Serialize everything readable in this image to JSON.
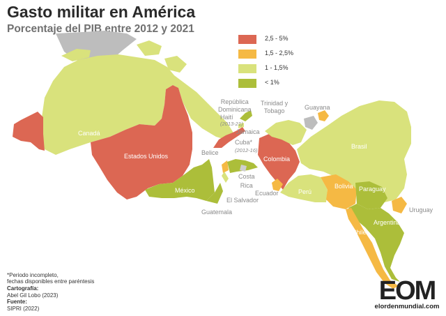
{
  "title": "Gasto militar en América",
  "subtitle": "Porcentaje del PIB entre 2012 y 2021",
  "colors": {
    "gt_2_5": "#dc6753",
    "c_1_5_2_5": "#f5b944",
    "c_1_1_5": "#d9e27c",
    "lt_1": "#acbe3a",
    "no_data": "#bdbdbd",
    "label_gray": "#8a8a8a",
    "label_white": "#ffffff"
  },
  "legend": [
    {
      "label": "2,5 - 5%",
      "color": "#dc6753"
    },
    {
      "label": "1,5 - 2,5%",
      "color": "#f5b944"
    },
    {
      "label": "1 - 1,5%",
      "color": "#d9e27c"
    },
    {
      "label": "< 1%",
      "color": "#acbe3a"
    }
  ],
  "countries": [
    {
      "name": "Canadá",
      "category": "1 - 1,5%"
    },
    {
      "name": "Estados Unidos",
      "category": "2,5 - 5%"
    },
    {
      "name": "México",
      "category": "< 1%"
    },
    {
      "name": "Colombia",
      "category": "2,5 - 5%"
    },
    {
      "name": "Brasil",
      "category": "1 - 1,5%"
    },
    {
      "name": "Perú",
      "category": "1 - 1,5%"
    },
    {
      "name": "Bolivia",
      "category": "1,5 - 2,5%"
    },
    {
      "name": "Paraguay",
      "category": "< 1%"
    },
    {
      "name": "Argentina",
      "category": "< 1%"
    },
    {
      "name": "Chile",
      "category": "1,5 - 2,5%"
    },
    {
      "name": "Uruguay",
      "category": "1,5 - 2,5%"
    },
    {
      "name": "Ecuador",
      "category": "1,5 - 2,5%"
    },
    {
      "name": "Cuba*",
      "category": "2,5 - 5%"
    },
    {
      "name": "Guyana",
      "category": "1,5 - 2,5%"
    },
    {
      "name": "Guatemala",
      "category": "< 1%"
    },
    {
      "name": "Costa Rica",
      "category": "sin datos"
    },
    {
      "name": "Belice",
      "category": "1,5 - 2,5%"
    },
    {
      "name": "El Salvador",
      "category": "1 - 1,5%"
    },
    {
      "name": "Jamaica",
      "category": "1 - 1,5%"
    },
    {
      "name": "Haití",
      "category": "< 1%"
    },
    {
      "name": "República Dominicana",
      "category": "< 1%"
    },
    {
      "name": "Trinidad y Tobago",
      "category": "< 1%"
    }
  ],
  "labels": {
    "canada": "Canadá",
    "usa": "Estados Unidos",
    "mexico": "México",
    "colombia": "Colombia",
    "brasil": "Brasil",
    "peru": "Perú",
    "bolivia": "Bolivia",
    "paraguay": "Paraguay",
    "argentina": "Argentina",
    "chile": "Chile",
    "uruguay": "Uruguay",
    "ecuador": "Ecuador",
    "costa_rica_1": "Costa",
    "costa_rica_2": "Rica",
    "el_salvador": "El Salvador",
    "guatemala": "Guatemala",
    "belice": "Belice",
    "cuba": "Cuba*",
    "cuba_years": "(2012-16)",
    "jamaica": "Jamaica",
    "haiti": "Haití",
    "haiti_years": "(2013-21)",
    "rep_dom_1": "República",
    "rep_dom_2": "Dominicana",
    "trinidad_1": "Trinidad y",
    "trinidad_2": "Tobago",
    "guayana": "Guayana"
  },
  "notes": {
    "asterisk_1": "*Periodo incompleto,",
    "asterisk_2": "fechas disponibles entre paréntesis",
    "cartografia_label": "Cartografía:",
    "cartografia_value": "Abel Gil Lobo (2023)",
    "fuente_label": "Fuente:",
    "fuente_value": "SIPRI (2022)"
  },
  "logo": {
    "mark": "EOM",
    "url": "elordenmundial.com"
  }
}
